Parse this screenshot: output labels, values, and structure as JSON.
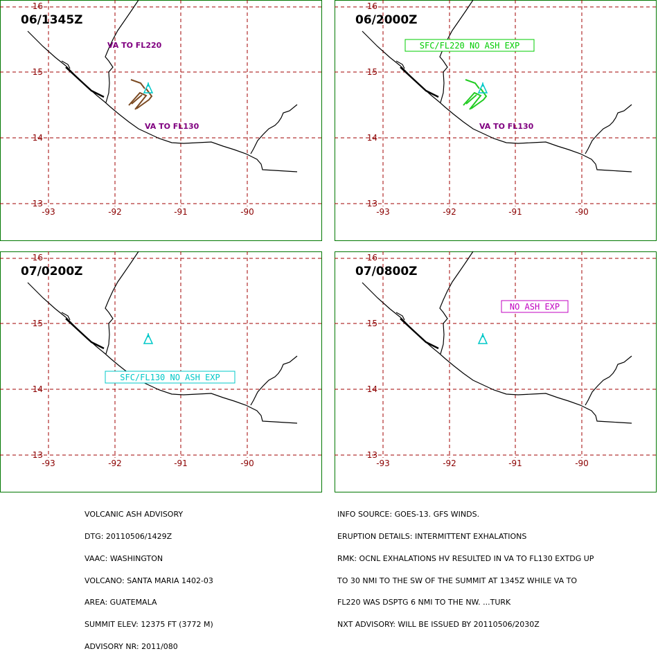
{
  "panels": [
    {
      "time": "06/1345Z",
      "labels": [
        {
          "text": "VA TO FL220"
        },
        {
          "text": "VA TO FL130"
        }
      ],
      "boxed": null,
      "polygon": true,
      "polygon_color": "#7b4a22"
    },
    {
      "time": "06/2000Z",
      "labels": [
        {
          "text": "VA TO FL130"
        }
      ],
      "boxed": {
        "text": "SFC/FL220 NO ASH EXP",
        "color": "#00cc00"
      },
      "polygon": true,
      "polygon_color": "#22cc22"
    },
    {
      "time": "07/0200Z",
      "labels": [],
      "boxed": {
        "text": "SFC/FL130 NO ASH EXP",
        "color": "#00c8c8"
      },
      "polygon": false
    },
    {
      "time": "07/0800Z",
      "labels": [],
      "boxed": {
        "text": "NO ASH EXP",
        "color": "#c000c0"
      },
      "polygon": false
    }
  ],
  "grid": {
    "lat_labels": [
      "16",
      "15",
      "14",
      "13"
    ],
    "lon_labels": [
      "-93",
      "-92",
      "-91",
      "-90"
    ],
    "grid_color": "#a00000",
    "frame_color": "#007700",
    "volcano_color": "#00c8c8"
  },
  "advisory": {
    "lines": [
      "VOLCANIC ASH ADVISORY",
      "DTG: 20110506/1429Z",
      "VAAC: WASHINGTON",
      "VOLCANO: SANTA MARIA 1402-03",
      "AREA: GUATEMALA",
      "SUMMIT ELEV: 12375 FT (3772 M)",
      "ADVISORY NR: 2011/080"
    ]
  },
  "info": {
    "lines": [
      "INFO SOURCE: GOES-13. GFS WINDS.",
      "ERUPTION DETAILS: INTERMITTENT EXHALATIONS",
      "RMK: OCNL EXHALATIONS HV RESULTED IN VA TO FL130 EXTDG UP",
      "TO 30 NMI TO THE SW OF THE SUMMIT AT 1345Z WHILE VA TO",
      "FL220 WAS DSPTG 6 NMI TO THE NW. ...TURK",
      "NXT ADVISORY: WILL BE ISSUED BY 20110506/2030Z"
    ]
  }
}
